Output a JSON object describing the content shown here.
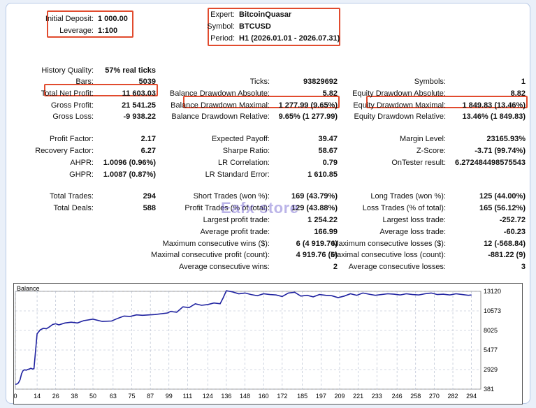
{
  "deposit": {
    "label": "Initial Deposit:",
    "value": "1 000.00"
  },
  "leverage": {
    "label": "Leverage:",
    "value": "1:100"
  },
  "expert": {
    "label": "Expert:",
    "value": "BitcoinQuasar"
  },
  "symbol": {
    "label": "Symbol:",
    "value": "BTCUSD"
  },
  "period": {
    "label": "Period:",
    "value": "H1 (2026.01.01 - 2026.07.31)"
  },
  "col1": [
    {
      "label": "History Quality:",
      "value": "57% real ticks"
    },
    {
      "label": "Bars:",
      "value": "5039"
    },
    {
      "label": "Total Net Profit:",
      "value": "11 603.03"
    },
    {
      "label": "Gross Profit:",
      "value": "21 541.25"
    },
    {
      "label": "Gross Loss:",
      "value": "-9 938.22"
    },
    {
      "label": "Profit Factor:",
      "value": "2.17"
    },
    {
      "label": "Recovery Factor:",
      "value": "6.27"
    },
    {
      "label": "AHPR:",
      "value": "1.0096 (0.96%)"
    },
    {
      "label": "GHPR:",
      "value": "1.0087 (0.87%)"
    },
    {
      "label": "Total Trades:",
      "value": "294"
    },
    {
      "label": "Total Deals:",
      "value": "588"
    }
  ],
  "col2": [
    {
      "label": "Ticks:",
      "value": "93829692"
    },
    {
      "label": "Balance Drawdown Absolute:",
      "value": "5.82"
    },
    {
      "label": "Balance Drawdown Maximal:",
      "value": "1 277.99 (9.65%)"
    },
    {
      "label": "Balance Drawdown Relative:",
      "value": "9.65% (1 277.99)"
    },
    {
      "label": "Expected Payoff:",
      "value": "39.47"
    },
    {
      "label": "Sharpe Ratio:",
      "value": "58.67"
    },
    {
      "label": "LR Correlation:",
      "value": "0.79"
    },
    {
      "label": "LR Standard Error:",
      "value": "1 610.85"
    },
    {
      "label": "Short Trades (won %):",
      "value": "169 (43.79%)"
    },
    {
      "label": "Profit Trades (% of total):",
      "value": "129 (43.88%)"
    },
    {
      "label": "Largest profit trade:",
      "value": "1 254.22"
    },
    {
      "label": "Average profit trade:",
      "value": "166.99"
    },
    {
      "label": "Maximum consecutive wins ($):",
      "value": "6 (4 919.76)"
    },
    {
      "label": "Maximal consecutive profit (count):",
      "value": "4 919.76 (6)"
    },
    {
      "label": "Average consecutive wins:",
      "value": "2"
    }
  ],
  "col3": [
    {
      "label": "Symbols:",
      "value": "1"
    },
    {
      "label": "Equity Drawdown Absolute:",
      "value": "8.82"
    },
    {
      "label": "Equity Drawdown Maximal:",
      "value": "1 849.83 (13.46%)"
    },
    {
      "label": "Equity Drawdown Relative:",
      "value": "13.46% (1 849.83)"
    },
    {
      "label": "Margin Level:",
      "value": "23165.93%"
    },
    {
      "label": "Z-Score:",
      "value": "-3.71 (99.74%)"
    },
    {
      "label": "OnTester result:",
      "value": "6.272484498575543"
    },
    {
      "label": "Long Trades (won %):",
      "value": "125 (44.00%)"
    },
    {
      "label": "Loss Trades (% of total):",
      "value": "165 (56.12%)"
    },
    {
      "label": "Largest loss trade:",
      "value": "-252.72"
    },
    {
      "label": "Average loss trade:",
      "value": "-60.23"
    },
    {
      "label": "Maximum consecutive losses ($):",
      "value": "12 (-568.84)"
    },
    {
      "label": "Maximal consecutive loss (count):",
      "value": "-881.22 (9)"
    },
    {
      "label": "Average consecutive losses:",
      "value": "3"
    }
  ],
  "watermark": "Eafx store",
  "chart_data": {
    "type": "line",
    "title": "Balance",
    "x_ticks": [
      "0",
      "14",
      "26",
      "38",
      "50",
      "63",
      "75",
      "87",
      "99",
      "111",
      "124",
      "136",
      "148",
      "160",
      "172",
      "185",
      "197",
      "209",
      "221",
      "233",
      "246",
      "258",
      "270",
      "282",
      "294"
    ],
    "y_ticks": [
      "13120",
      "10573",
      "8025",
      "5477",
      "2929",
      "381"
    ],
    "ylim": [
      381,
      13120
    ],
    "xlim": [
      0,
      300
    ],
    "line_color": "#1f22a0",
    "series": [
      {
        "x": [
          0,
          1,
          2,
          3,
          4,
          5,
          6,
          7,
          8,
          9,
          10,
          11,
          12,
          14,
          16,
          18,
          20,
          22,
          24,
          26,
          28,
          32,
          36,
          40,
          44,
          50,
          56,
          62,
          66,
          70,
          74,
          78,
          82,
          90,
          98,
          100,
          104,
          108,
          112,
          116,
          120,
          124,
          128,
          132,
          134,
          136,
          140,
          144,
          148,
          152,
          156,
          160,
          164,
          168,
          172,
          176,
          180,
          184,
          188,
          192,
          196,
          200,
          204,
          208,
          212,
          216,
          220,
          224,
          228,
          232,
          236,
          240,
          244,
          248,
          252,
          256,
          260,
          264,
          268,
          272,
          276,
          280,
          284,
          288,
          292,
          294
        ],
        "y": [
          1000,
          1050,
          1200,
          1600,
          2400,
          2800,
          2900,
          2850,
          2950,
          3000,
          3100,
          3000,
          3050,
          7600,
          8100,
          8300,
          8250,
          8500,
          8800,
          8900,
          8750,
          9000,
          9100,
          9000,
          9300,
          9500,
          9200,
          9250,
          9600,
          9900,
          9850,
          10050,
          10000,
          10100,
          10300,
          10500,
          10400,
          11100,
          11000,
          11500,
          11300,
          11400,
          11600,
          11500,
          12300,
          13200,
          13050,
          12800,
          12900,
          12700,
          12550,
          12800,
          12700,
          12650,
          12450,
          12900,
          13000,
          12500,
          12600,
          12400,
          12700,
          12600,
          12550,
          12300,
          12500,
          12800,
          12600,
          12900,
          12750,
          12600,
          12700,
          12800,
          12750,
          12650,
          12800,
          12700,
          12650,
          12800,
          12900,
          12700,
          12750,
          12650,
          12800,
          12700,
          12600,
          12650
        ]
      }
    ]
  }
}
